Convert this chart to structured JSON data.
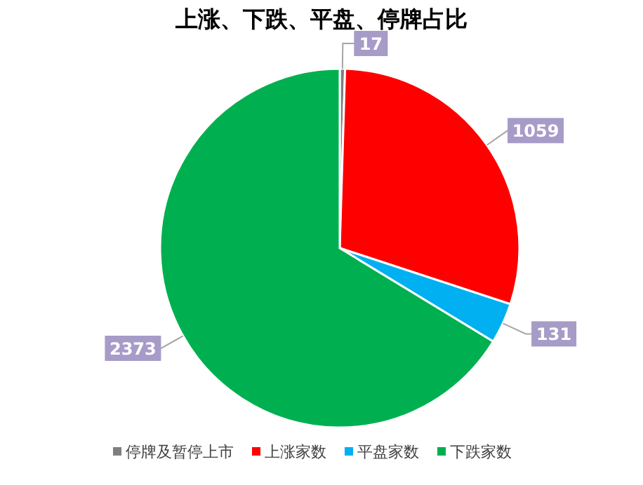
{
  "chart_data": {
    "type": "pie",
    "title": "上涨、下跌、平盘、停牌占比",
    "categories": [
      "停牌及暂停上市",
      "上涨家数",
      "平盘家数",
      "下跌家数"
    ],
    "values": [
      17,
      1059,
      131,
      2373
    ],
    "colors": [
      "#7f7f7f",
      "#ff0000",
      "#00b0f0",
      "#00b050"
    ],
    "data_labels": true,
    "legend": "bottom"
  }
}
